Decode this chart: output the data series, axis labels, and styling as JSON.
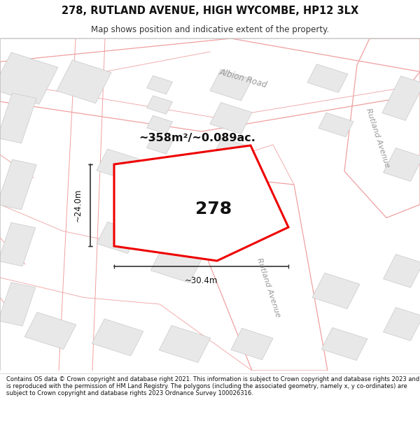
{
  "title": "278, RUTLAND AVENUE, HIGH WYCOMBE, HP12 3LX",
  "subtitle": "Map shows position and indicative extent of the property.",
  "footer": "Contains OS data © Crown copyright and database right 2021. This information is subject to Crown copyright and database rights 2023 and is reproduced with the permission of HM Land Registry. The polygons (including the associated geometry, namely x, y co-ordinates) are subject to Crown copyright and database rights 2023 Ordnance Survey 100026316.",
  "area_label": "~358m²/~0.089ac.",
  "plot_number": "278",
  "dim_height": "~24.0m",
  "dim_width": "~30.4m",
  "road_label_albion": "Albion Road",
  "road_label_rutland_top": "Rutland Avenue",
  "road_label_rutland_mid": "Rutland Avenue",
  "road_color": "#f0a0a0",
  "building_fill": "#e8e8e8",
  "building_edge": "#c8c8c8",
  "plot_edge": "#ee0000",
  "text_color": "#111111",
  "road_text_color": "#aaaaaa",
  "bg_white": "#ffffff",
  "bg_light": "#f0f0f0"
}
